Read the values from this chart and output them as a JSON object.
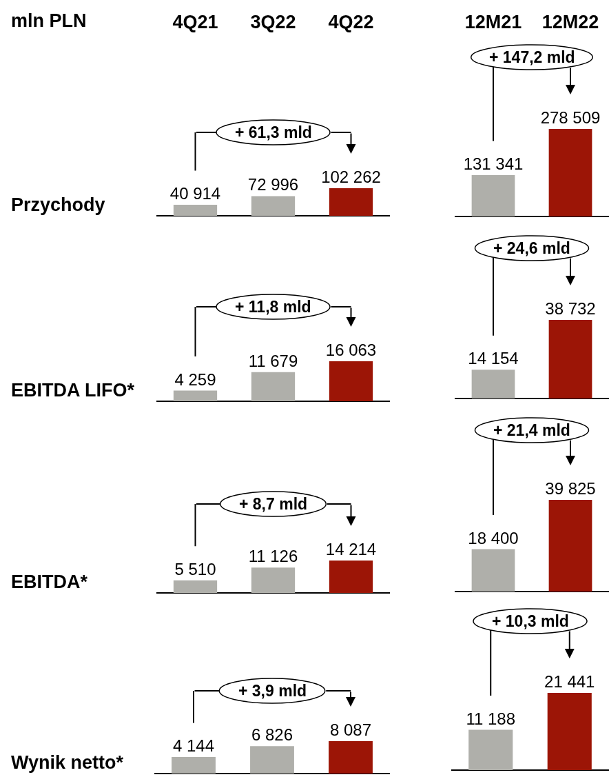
{
  "chart_data": [
    {
      "type": "bar",
      "title": "Przychody",
      "ylabel": "mln PLN",
      "categories": [
        "4Q21",
        "3Q22",
        "4Q22"
      ],
      "values": [
        40914,
        72996,
        102262
      ],
      "colors": [
        "#afafaa",
        "#afafaa",
        "#9c1506"
      ],
      "data_labels": true,
      "tick_labels": "x",
      "annotations": [
        "+ 61,3 mld"
      ]
    },
    {
      "type": "bar",
      "categories": [
        "12M21",
        "12M22"
      ],
      "values": [
        131341,
        278509
      ],
      "colors": [
        "#afafaa",
        "#9c1506"
      ],
      "data_labels": true,
      "tick_labels": "x",
      "annotations": [
        "+ 147,2 mld"
      ]
    },
    {
      "type": "bar",
      "title": "EBITDA LIFO*",
      "categories": [
        null,
        null,
        null
      ],
      "values": [
        4259,
        11679,
        16063
      ],
      "colors": [
        "#afafaa",
        "#afafaa",
        "#9c1506"
      ],
      "data_labels": true,
      "annotations": [
        "+ 11,8 mld"
      ]
    },
    {
      "type": "bar",
      "categories": [
        null,
        null
      ],
      "values": [
        14154,
        38732
      ],
      "colors": [
        "#afafaa",
        "#9c1506"
      ],
      "data_labels": true,
      "annotations": [
        "+ 24,6 mld"
      ]
    },
    {
      "type": "bar",
      "title": "EBITDA*",
      "categories": [
        null,
        null,
        null
      ],
      "values": [
        5510,
        11126,
        14214
      ],
      "colors": [
        "#afafaa",
        "#afafaa",
        "#9c1506"
      ],
      "data_labels": true,
      "annotations": [
        "+ 8,7 mld"
      ]
    },
    {
      "type": "bar",
      "categories": [
        null,
        null
      ],
      "values": [
        18400,
        39825
      ],
      "colors": [
        "#afafaa",
        "#9c1506"
      ],
      "data_labels": true,
      "annotations": [
        "+ 21,4 mld"
      ]
    },
    {
      "type": "bar",
      "title": "Wynik netto*",
      "categories": [
        null,
        null,
        null
      ],
      "values": [
        4144,
        6826,
        8087
      ],
      "colors": [
        "#afafaa",
        "#afafaa",
        "#9c1506"
      ],
      "data_labels": true,
      "annotations": [
        "+ 3,9 mld"
      ]
    },
    {
      "type": "bar",
      "categories": [
        null,
        null
      ],
      "values": [
        11188,
        21441
      ],
      "colors": [
        "#afafaa",
        "#9c1506"
      ],
      "data_labels": true,
      "annotations": [
        "+ 10,3 mld"
      ]
    }
  ]
}
